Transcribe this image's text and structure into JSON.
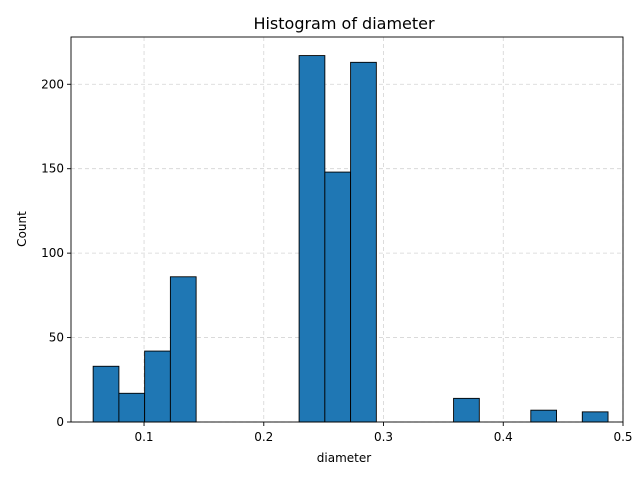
{
  "chart_data": {
    "type": "bar",
    "title": "Histogram of diameter",
    "xlabel": "diameter",
    "ylabel": "Count",
    "xlim": [
      0.039,
      0.5
    ],
    "ylim": [
      0,
      228
    ],
    "grid": true,
    "bar_color": "#1f77b4",
    "edge_color": "#000000",
    "bin_edges": [
      0.0575,
      0.079,
      0.1005,
      0.122,
      0.1435,
      0.165,
      0.1865,
      0.208,
      0.2295,
      0.251,
      0.2725,
      0.294,
      0.3155,
      0.337,
      0.3585,
      0.38,
      0.4015,
      0.423,
      0.4445,
      0.466,
      0.4875
    ],
    "values": [
      33,
      17,
      42,
      86,
      0,
      0,
      0,
      0,
      217,
      148,
      213,
      0,
      0,
      0,
      14,
      0,
      0,
      7,
      0,
      6
    ],
    "xticks": [
      0.1,
      0.2,
      0.3,
      0.4,
      0.5
    ],
    "xtick_labels": [
      "0.1",
      "0.2",
      "0.3",
      "0.4",
      "0.5"
    ],
    "yticks": [
      0,
      50,
      100,
      150,
      200
    ],
    "ytick_labels": [
      "0",
      "50",
      "100",
      "150",
      "200"
    ]
  }
}
